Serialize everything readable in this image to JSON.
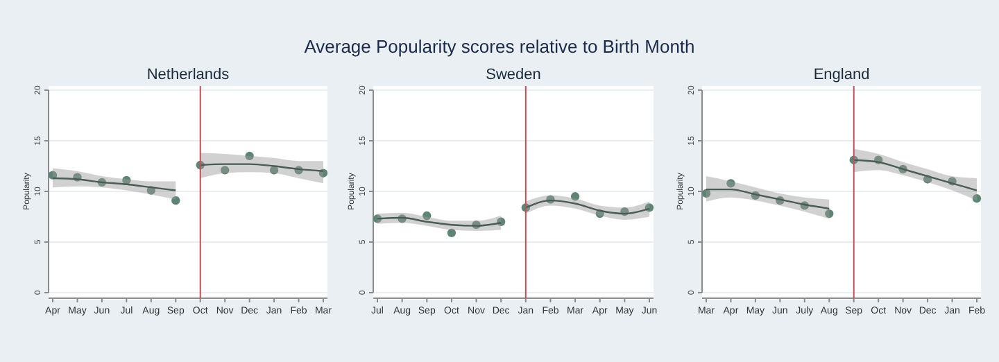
{
  "chart_data": [
    {
      "type": "other",
      "title": "Average Popularity scores relative to Birth Month"
    },
    {
      "type": "scatter",
      "subtitle": "Netherlands",
      "ylabel": "Popularity",
      "categories": [
        "Apr",
        "May",
        "Jun",
        "Jul",
        "Aug",
        "Sep",
        "Oct",
        "Nov",
        "Dec",
        "Jan",
        "Feb",
        "Mar"
      ],
      "ylim": [
        0,
        20
      ],
      "yticks": [
        0,
        5,
        10,
        15,
        20
      ],
      "grid": "y",
      "ref_lines": [
        {
          "axis": "x",
          "value": "Oct",
          "color": "#c0505a"
        }
      ],
      "series": [
        {
          "marker": "circle",
          "color": "#5e8474",
          "values": [
            11.6,
            11.4,
            10.9,
            11.1,
            10.1,
            9.1,
            12.6,
            12.1,
            13.5,
            12.1,
            12.1,
            11.8
          ]
        },
        {
          "type": "line",
          "color": "#4a5c54",
          "values": [
            11.3,
            11.2,
            10.9,
            10.7,
            10.4,
            10.1,
            null,
            null,
            null,
            null,
            null,
            null
          ],
          "lower": [
            10.4,
            10.5,
            10.4,
            10.1,
            9.7,
            9.2,
            null,
            null,
            null,
            null,
            null,
            null
          ],
          "upper": [
            12.3,
            12.0,
            11.5,
            11.2,
            11.0,
            11.0,
            null,
            null,
            null,
            null,
            null,
            null
          ]
        },
        {
          "type": "line",
          "color": "#4a5c54",
          "values": [
            null,
            null,
            null,
            null,
            null,
            null,
            12.6,
            12.7,
            12.7,
            12.5,
            12.2,
            12.0
          ],
          "lower": [
            null,
            null,
            null,
            null,
            null,
            null,
            11.3,
            11.8,
            11.9,
            11.8,
            11.3,
            10.8
          ],
          "upper": [
            null,
            null,
            null,
            null,
            null,
            null,
            13.8,
            13.7,
            13.5,
            13.3,
            13.0,
            13.0
          ]
        }
      ]
    },
    {
      "type": "scatter",
      "subtitle": "Sweden",
      "ylabel": "Popularity",
      "categories": [
        "Jul",
        "Aug",
        "Sep",
        "Oct",
        "Nov",
        "Dec",
        "Jan",
        "Feb",
        "Mar",
        "Apr",
        "May",
        "Jun"
      ],
      "ylim": [
        0,
        20
      ],
      "yticks": [
        0,
        5,
        10,
        15,
        20
      ],
      "grid": "y",
      "ref_lines": [
        {
          "axis": "x",
          "value": "Jan",
          "color": "#c0505a"
        }
      ],
      "series": [
        {
          "marker": "circle",
          "color": "#5e8474",
          "values": [
            7.3,
            7.3,
            7.6,
            5.9,
            6.7,
            7.0,
            8.4,
            9.2,
            9.5,
            7.8,
            8.0,
            8.4
          ]
        },
        {
          "type": "line",
          "color": "#4a5c54",
          "values": [
            7.3,
            7.4,
            7.0,
            6.7,
            6.6,
            6.9,
            null,
            null,
            null,
            null,
            null,
            null
          ],
          "lower": [
            6.8,
            6.9,
            6.6,
            6.2,
            6.1,
            6.2,
            null,
            null,
            null,
            null,
            null,
            null
          ],
          "upper": [
            7.8,
            7.9,
            7.5,
            7.1,
            7.1,
            7.6,
            null,
            null,
            null,
            null,
            null,
            null
          ]
        },
        {
          "type": "line",
          "color": "#4a5c54",
          "values": [
            null,
            null,
            null,
            null,
            null,
            null,
            8.4,
            9.1,
            8.8,
            8.1,
            7.8,
            8.3
          ],
          "lower": [
            null,
            null,
            null,
            null,
            null,
            null,
            7.8,
            8.6,
            8.3,
            7.6,
            7.2,
            7.5
          ],
          "upper": [
            null,
            null,
            null,
            null,
            null,
            null,
            9.0,
            9.6,
            9.3,
            8.6,
            8.4,
            9.0
          ]
        }
      ]
    },
    {
      "type": "scatter",
      "subtitle": "England",
      "ylabel": "Popularity",
      "categories": [
        "Mar",
        "Apr",
        "May",
        "Jun",
        "July",
        "Aug",
        "Sep",
        "Oct",
        "Nov",
        "Dec",
        "Jan",
        "Feb"
      ],
      "ylim": [
        0,
        20
      ],
      "yticks": [
        0,
        5,
        10,
        15,
        20
      ],
      "grid": "y",
      "ref_lines": [
        {
          "axis": "x",
          "value": "Sep",
          "color": "#c0505a"
        }
      ],
      "series": [
        {
          "marker": "circle",
          "color": "#5e8474",
          "values": [
            9.8,
            10.8,
            9.6,
            9.1,
            8.6,
            7.8,
            13.1,
            13.1,
            12.2,
            11.2,
            11.0,
            9.3
          ]
        },
        {
          "type": "line",
          "color": "#4a5c54",
          "values": [
            10.2,
            10.2,
            9.7,
            9.2,
            8.7,
            8.3,
            null,
            null,
            null,
            null,
            null,
            null
          ],
          "lower": [
            9.0,
            9.4,
            9.1,
            8.6,
            8.0,
            7.3,
            null,
            null,
            null,
            null,
            null,
            null
          ],
          "upper": [
            11.5,
            11.0,
            10.4,
            9.8,
            9.4,
            9.2,
            null,
            null,
            null,
            null,
            null,
            null
          ]
        },
        {
          "type": "line",
          "color": "#4a5c54",
          "values": [
            null,
            null,
            null,
            null,
            null,
            null,
            13.1,
            12.9,
            12.2,
            11.5,
            10.8,
            10.1
          ],
          "lower": [
            null,
            null,
            null,
            null,
            null,
            null,
            11.9,
            12.1,
            11.6,
            10.9,
            10.1,
            9.1
          ],
          "upper": [
            null,
            null,
            null,
            null,
            null,
            null,
            14.2,
            13.7,
            12.9,
            12.2,
            11.5,
            11.3
          ]
        }
      ]
    }
  ]
}
